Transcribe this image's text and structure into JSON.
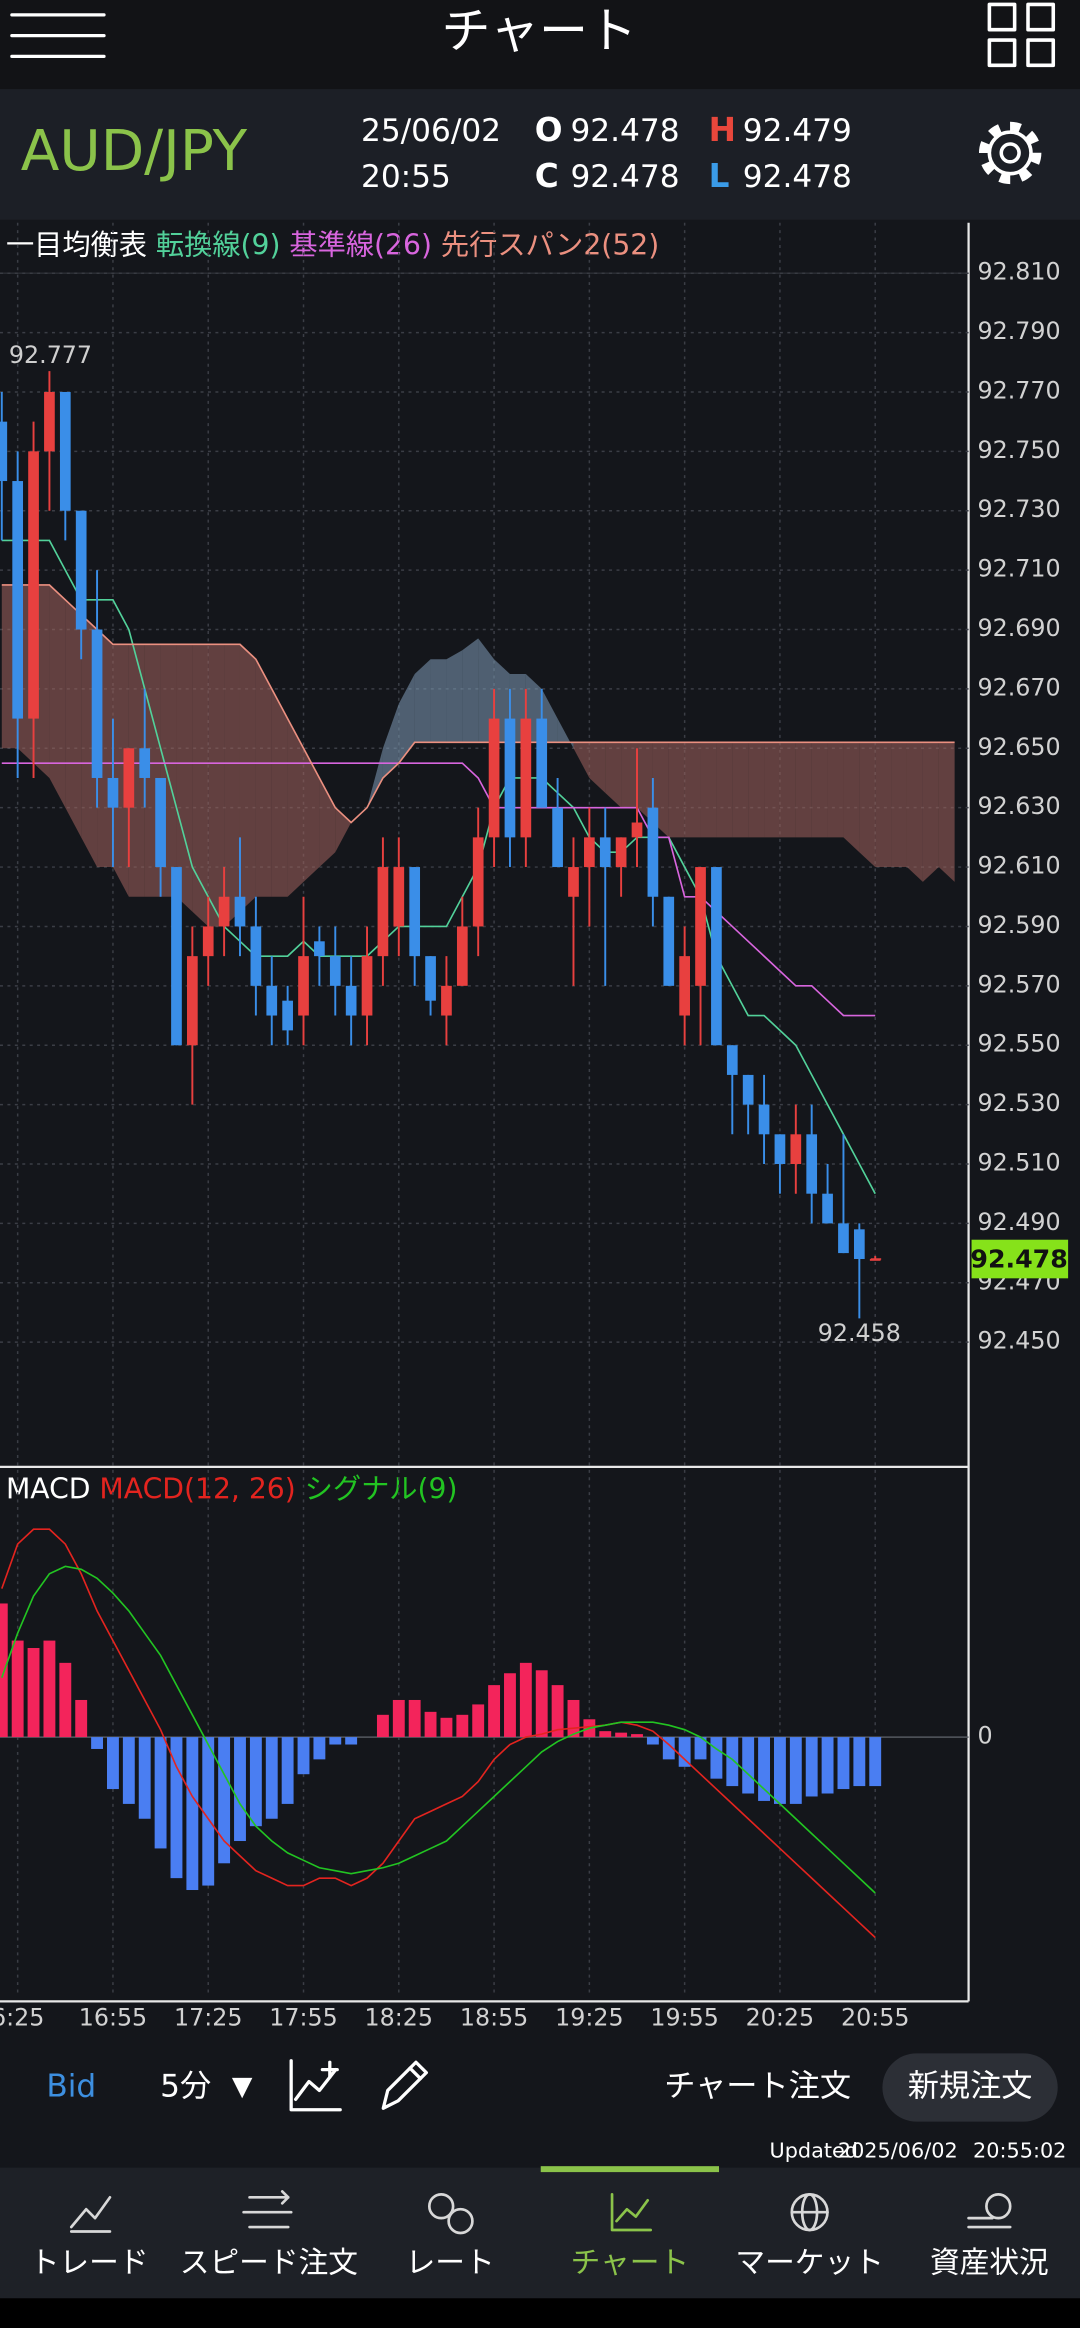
{
  "header": {
    "title": "チャート"
  },
  "quote": {
    "pair": "AUD/JPY",
    "date": "25/06/02",
    "time": "20:55",
    "open_label": "O",
    "open": 92.478,
    "high_label": "H",
    "high": 92.479,
    "close_label": "C",
    "close": 92.478,
    "low_label": "L",
    "low": 92.478
  },
  "chart_data": {
    "type": "candlestick",
    "indicator": "一目均衡表",
    "categories": [
      null,
      "6:25",
      null,
      null,
      null,
      null,
      null,
      "16:55",
      null,
      null,
      null,
      null,
      null,
      "17:25",
      null,
      null,
      null,
      null,
      null,
      "17:55",
      null,
      null,
      null,
      null,
      null,
      "18:25",
      null,
      null,
      null,
      null,
      null,
      "18:55",
      null,
      null,
      null,
      null,
      null,
      "19:25",
      null,
      null,
      null,
      null,
      null,
      "19:55",
      null,
      null,
      null,
      null,
      null,
      "20:25",
      null,
      null,
      null,
      null,
      null,
      "20:55",
      null,
      null,
      null,
      null,
      null
    ],
    "open": [
      92.76,
      92.74,
      92.66,
      92.75,
      92.77,
      92.73,
      92.69,
      92.64,
      92.63,
      92.65,
      92.64,
      92.61,
      92.55,
      92.58,
      92.59,
      92.6,
      92.59,
      92.57,
      92.565,
      92.56,
      92.585,
      92.58,
      92.57,
      92.56,
      92.58,
      92.59,
      92.61,
      92.58,
      92.56,
      92.57,
      92.59,
      92.62,
      92.66,
      92.62,
      92.66,
      92.63,
      92.6,
      92.61,
      92.62,
      92.61,
      92.62,
      92.63,
      92.6,
      92.56,
      92.57,
      92.61,
      92.55,
      92.54,
      92.53,
      92.52,
      92.51,
      92.52,
      92.5,
      92.49,
      92.488,
      92.478,
      null,
      null,
      null,
      null,
      null
    ],
    "high": [
      92.77,
      92.75,
      92.76,
      92.777,
      92.77,
      92.73,
      92.71,
      92.66,
      92.65,
      92.67,
      92.64,
      92.61,
      92.59,
      92.6,
      92.61,
      92.62,
      92.6,
      92.58,
      92.57,
      92.6,
      92.59,
      92.59,
      92.58,
      92.59,
      92.62,
      92.62,
      92.61,
      92.58,
      92.58,
      92.6,
      92.63,
      92.67,
      92.67,
      92.67,
      92.67,
      92.64,
      92.62,
      92.63,
      92.63,
      92.62,
      92.65,
      92.64,
      92.6,
      92.59,
      92.61,
      92.61,
      92.55,
      92.54,
      92.54,
      92.52,
      92.53,
      92.53,
      92.51,
      92.52,
      92.49,
      92.479,
      null,
      null,
      null,
      null,
      null
    ],
    "low": [
      92.72,
      92.64,
      92.64,
      92.73,
      92.72,
      92.68,
      92.63,
      92.61,
      92.61,
      92.63,
      92.6,
      92.55,
      92.53,
      92.57,
      92.58,
      92.58,
      92.56,
      92.55,
      92.55,
      92.55,
      92.57,
      92.56,
      92.55,
      92.55,
      92.57,
      92.58,
      92.57,
      92.56,
      92.55,
      92.57,
      92.58,
      92.61,
      92.61,
      92.61,
      92.63,
      92.61,
      92.57,
      92.59,
      92.57,
      92.6,
      92.61,
      92.59,
      92.57,
      92.55,
      92.55,
      92.55,
      92.52,
      92.52,
      92.51,
      92.5,
      92.5,
      92.49,
      92.49,
      92.48,
      92.458,
      92.478,
      null,
      null,
      null,
      null,
      null
    ],
    "close": [
      92.74,
      92.66,
      92.75,
      92.77,
      92.73,
      92.69,
      92.64,
      92.63,
      92.65,
      92.64,
      92.61,
      92.55,
      92.58,
      92.59,
      92.6,
      92.59,
      92.57,
      92.56,
      92.555,
      92.58,
      92.58,
      92.57,
      92.56,
      92.58,
      92.61,
      92.61,
      92.58,
      92.565,
      92.57,
      92.59,
      92.62,
      92.66,
      92.62,
      92.66,
      92.63,
      92.61,
      92.61,
      92.62,
      92.61,
      92.62,
      92.625,
      92.6,
      92.57,
      92.58,
      92.61,
      92.55,
      92.54,
      92.53,
      92.52,
      92.51,
      92.52,
      92.5,
      92.49,
      92.48,
      92.478,
      92.478,
      null,
      null,
      null,
      null,
      null
    ],
    "up_color": "#e8403f",
    "down_color": "#3a8ee8",
    "series": [
      {
        "name": "転換線(9)",
        "color": "#52d19a",
        "values": [
          92.72,
          92.72,
          92.72,
          92.72,
          92.71,
          92.7,
          92.7,
          92.7,
          92.69,
          92.67,
          92.65,
          92.63,
          92.61,
          92.6,
          92.59,
          92.585,
          92.58,
          92.58,
          92.58,
          92.585,
          92.58,
          92.58,
          92.58,
          92.58,
          92.585,
          92.59,
          92.59,
          92.59,
          92.59,
          92.6,
          92.61,
          92.63,
          92.64,
          92.64,
          92.64,
          92.635,
          92.63,
          92.62,
          92.615,
          92.615,
          92.62,
          92.62,
          92.62,
          92.61,
          92.6,
          92.58,
          92.57,
          92.56,
          92.56,
          92.555,
          92.55,
          92.54,
          92.53,
          92.52,
          92.51,
          92.5,
          null,
          null,
          null,
          null,
          null
        ]
      },
      {
        "name": "基準線(26)",
        "color": "#d865de",
        "values": [
          92.645,
          92.645,
          92.645,
          92.645,
          92.645,
          92.645,
          92.645,
          92.645,
          92.645,
          92.645,
          92.645,
          92.645,
          92.645,
          92.645,
          92.645,
          92.645,
          92.645,
          92.645,
          92.645,
          92.645,
          92.645,
          92.645,
          92.645,
          92.645,
          92.645,
          92.645,
          92.645,
          92.645,
          92.645,
          92.645,
          92.64,
          92.63,
          92.63,
          92.63,
          92.63,
          92.63,
          92.63,
          92.63,
          92.63,
          92.63,
          92.63,
          92.62,
          92.62,
          92.6,
          92.6,
          92.595,
          92.59,
          92.585,
          92.58,
          92.575,
          92.57,
          92.57,
          92.565,
          92.56,
          92.56,
          92.56,
          null,
          null,
          null,
          null,
          null
        ]
      },
      {
        "name": "先行スパン2(52)",
        "color": "#eb9080",
        "values": [
          92.705,
          92.705,
          92.705,
          92.705,
          92.7,
          92.695,
          92.69,
          92.685,
          92.685,
          92.685,
          92.685,
          92.685,
          92.685,
          92.685,
          92.685,
          92.685,
          92.68,
          92.67,
          92.66,
          92.65,
          92.64,
          92.63,
          92.625,
          92.63,
          92.64,
          92.645,
          92.652,
          92.652,
          92.652,
          92.652,
          92.652,
          92.652,
          92.652,
          92.652,
          92.652,
          92.652,
          92.652,
          92.652,
          92.652,
          92.652,
          92.652,
          92.652,
          92.652,
          92.652,
          92.652,
          92.652,
          92.652,
          92.652,
          92.652,
          92.652,
          92.652,
          92.652,
          92.652,
          92.652,
          92.652,
          92.652,
          92.652,
          92.652,
          92.652,
          92.652,
          92.652
        ]
      }
    ],
    "span1": [
      92.65,
      92.65,
      92.645,
      92.64,
      92.63,
      92.62,
      92.61,
      92.61,
      92.6,
      92.6,
      92.6,
      92.6,
      92.595,
      92.59,
      92.59,
      92.595,
      92.6,
      92.6,
      92.6,
      92.605,
      92.61,
      92.615,
      92.625,
      92.63,
      92.65,
      92.665,
      92.675,
      92.68,
      92.68,
      92.683,
      92.687,
      92.68,
      92.675,
      92.675,
      92.67,
      92.66,
      92.65,
      92.64,
      92.635,
      92.63,
      92.63,
      92.625,
      92.62,
      92.62,
      92.62,
      92.62,
      92.62,
      92.62,
      92.62,
      92.62,
      92.62,
      92.62,
      92.62,
      92.62,
      92.615,
      92.61,
      92.61,
      92.61,
      92.605,
      92.61,
      92.605
    ],
    "cloud_up_color": "#7f9cb8",
    "cloud_down_color": "#a2655e",
    "ylim": [
      92.408,
      92.827
    ],
    "yticks": [
      {
        "value": 92.81,
        "label": "92.810"
      },
      {
        "value": 92.79,
        "label": "92.790"
      },
      {
        "value": 92.77,
        "label": "92.770"
      },
      {
        "value": 92.75,
        "label": "92.750"
      },
      {
        "value": 92.73,
        "label": "92.730"
      },
      {
        "value": 92.71,
        "label": "92.710"
      },
      {
        "value": 92.69,
        "label": "92.690"
      },
      {
        "value": 92.67,
        "label": "92.670"
      },
      {
        "value": 92.65,
        "label": "92.650"
      },
      {
        "value": 92.63,
        "label": "92.630"
      },
      {
        "value": 92.61,
        "label": "92.610"
      },
      {
        "value": 92.59,
        "label": "92.590"
      },
      {
        "value": 92.57,
        "label": "92.570"
      },
      {
        "value": 92.55,
        "label": "92.550"
      },
      {
        "value": 92.53,
        "label": "92.530"
      },
      {
        "value": 92.51,
        "label": "92.510"
      },
      {
        "value": 92.49,
        "label": "92.490"
      },
      {
        "value": 92.47,
        "label": "92.470"
      },
      {
        "value": 92.45,
        "label": "92.450"
      }
    ],
    "grid": true,
    "price_color": "#86e21a",
    "macd": {
      "title": "MACD",
      "series": [
        {
          "name": "MACD(12, 26)",
          "color": "#e3241f",
          "values": [
            1.0,
            1.3,
            1.4,
            1.4,
            1.3,
            1.1,
            0.85,
            0.65,
            0.45,
            0.25,
            0.05,
            -0.2,
            -0.4,
            -0.55,
            -0.7,
            -0.8,
            -0.9,
            -0.95,
            -1.0,
            -1.0,
            -0.95,
            -0.95,
            -1.0,
            -0.95,
            -0.85,
            -0.7,
            -0.55,
            -0.5,
            -0.45,
            -0.4,
            -0.3,
            -0.15,
            -0.05,
            0.0,
            0.02,
            0.05,
            0.06,
            0.07,
            0.08,
            0.1,
            0.08,
            0.04,
            -0.05,
            -0.15,
            -0.25,
            -0.35,
            -0.45,
            -0.55,
            -0.65,
            -0.75,
            -0.85,
            -0.95,
            -1.05,
            -1.15,
            -1.25,
            -1.35,
            null,
            null,
            null,
            null,
            null
          ]
        },
        {
          "name": "シグナル(9)",
          "color": "#22c422",
          "values": [
            0.4,
            0.7,
            0.95,
            1.1,
            1.15,
            1.13,
            1.07,
            0.97,
            0.85,
            0.7,
            0.55,
            0.35,
            0.15,
            -0.05,
            -0.25,
            -0.45,
            -0.6,
            -0.7,
            -0.78,
            -0.83,
            -0.88,
            -0.9,
            -0.92,
            -0.9,
            -0.88,
            -0.85,
            -0.8,
            -0.75,
            -0.7,
            -0.6,
            -0.5,
            -0.4,
            -0.3,
            -0.2,
            -0.1,
            -0.03,
            0.02,
            0.06,
            0.08,
            0.1,
            0.1,
            0.1,
            0.08,
            0.05,
            0.0,
            -0.08,
            -0.15,
            -0.25,
            -0.35,
            -0.45,
            -0.55,
            -0.65,
            -0.75,
            -0.85,
            -0.95,
            -1.05,
            null,
            null,
            null,
            null,
            null
          ]
        }
      ],
      "histogram": {
        "values": [
          0.9,
          0.65,
          0.6,
          0.65,
          0.5,
          0.25,
          -0.08,
          -0.35,
          -0.45,
          -0.55,
          -0.75,
          -0.95,
          -1.03,
          -1.0,
          -0.85,
          -0.7,
          -0.6,
          -0.55,
          -0.45,
          -0.25,
          -0.15,
          -0.05,
          -0.05,
          0,
          0.15,
          0.25,
          0.25,
          0.17,
          0.13,
          0.15,
          0.22,
          0.35,
          0.43,
          0.5,
          0.45,
          0.35,
          0.25,
          0.12,
          0.04,
          0.03,
          0.02,
          -0.05,
          -0.15,
          -0.2,
          -0.15,
          -0.28,
          -0.33,
          -0.38,
          -0.43,
          -0.45,
          -0.45,
          -0.4,
          -0.38,
          -0.35,
          -0.33,
          -0.33,
          null,
          null,
          null,
          null,
          null
        ],
        "up_color": "#f3245b",
        "down_color": "#4a7ef2"
      },
      "ylim": [
        -1.75,
        1.8
      ],
      "yticks": [
        0
      ]
    }
  },
  "toolbar": {
    "price_type": "Bid",
    "interval": "5分",
    "dropdown": "▼",
    "chart_order": "チャート注文",
    "new_order": "新規注文"
  },
  "status": {
    "label": "Updated",
    "date": "2025/06/02",
    "time": "20:55:02"
  },
  "nav": {
    "items": [
      "トレード",
      "スピード注文",
      "レート",
      "チャート",
      "マーケット",
      "資産状況"
    ]
  }
}
